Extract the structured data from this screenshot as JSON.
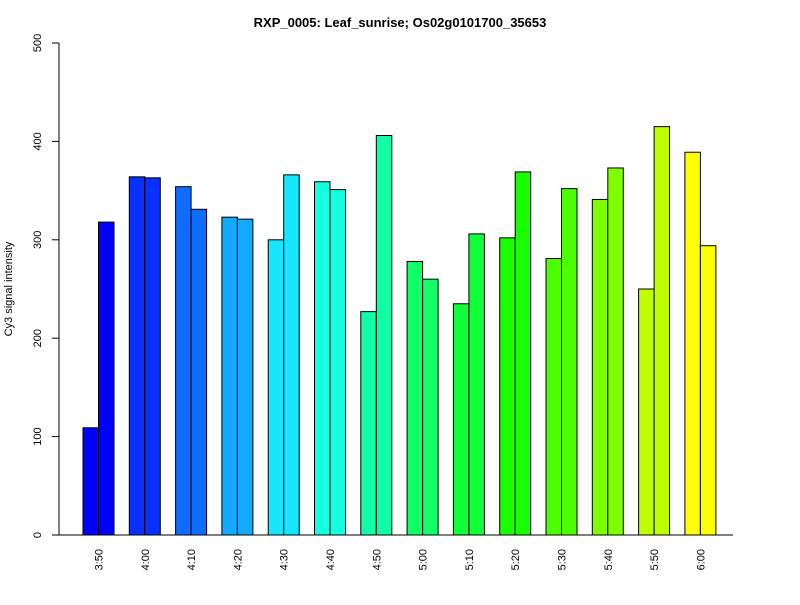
{
  "chart_data": {
    "type": "bar",
    "title": "RXP_0005: Leaf_sunrise; Os02g0101700_35653",
    "xlabel": "",
    "ylabel": "Cy3 signal intensity",
    "ylim": [
      0,
      500
    ],
    "yticks": [
      0,
      100,
      200,
      300,
      400,
      500
    ],
    "categories": [
      "3:50",
      "4:00",
      "4:10",
      "4:20",
      "4:30",
      "4:40",
      "4:50",
      "5:00",
      "5:10",
      "5:20",
      "5:30",
      "5:40",
      "5:50",
      "6:00"
    ],
    "series": [
      {
        "values": [
          109,
          364,
          354,
          323,
          300,
          359,
          227,
          278,
          235,
          302,
          281,
          341,
          250,
          389
        ]
      },
      {
        "values": [
          318,
          363,
          331,
          321,
          366,
          351,
          406,
          260,
          306,
          369,
          352,
          373,
          415,
          294
        ]
      }
    ],
    "colors": [
      "#0000ff",
      "#0a30ff",
      "#0f6cff",
      "#12aaff",
      "#16e6ff",
      "#14ffe0",
      "#10ffa6",
      "#12ff68",
      "#10ff38",
      "#1aff00",
      "#4cff00",
      "#80ff00",
      "#c0ff00",
      "#ffff00"
    ],
    "grid": false,
    "legend": "none"
  }
}
